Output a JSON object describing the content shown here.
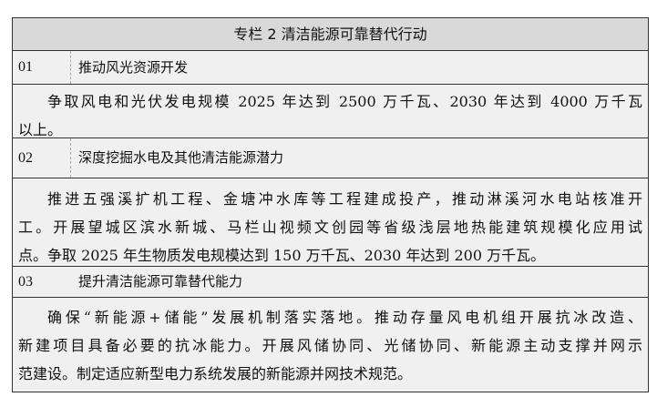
{
  "title": "专栏 2  清洁能源可靠替代行动",
  "sections": [
    {
      "num": "01",
      "title": "推动风光资源开发",
      "lines": [
        "争取风电和光伏发电规模 2025 年达到 2500 万千瓦、2030 年达到 4000 万千瓦",
        "以上。"
      ]
    },
    {
      "num": "02",
      "title": "深度挖掘水电及其他清洁能源潜力",
      "lines": [
        "推进五强溪扩机工程、金塘冲水库等工程建成投产，推动淋溪河水电站核准开",
        "工。开展望城区滨水新城、马栏山视频文创园等省级浅层地热能建筑规模化应用试",
        "点。争取 2025 年生物质发电规模达到 150 万千瓦、2030 年达到 200 万千瓦。"
      ]
    },
    {
      "num": "03",
      "title": "提升清洁能源可靠替代能力",
      "lines": [
        "确保“新能源+储能”发展机制落实落地。推动存量风电机组开展抗冰改造、",
        "新建项目具备必要的抗冰能力。开展风储协同、光储协同、新能源主动支撑并网示",
        "范建设。制定适应新型电力系统发展的新能源并网技术规范。"
      ]
    }
  ]
}
